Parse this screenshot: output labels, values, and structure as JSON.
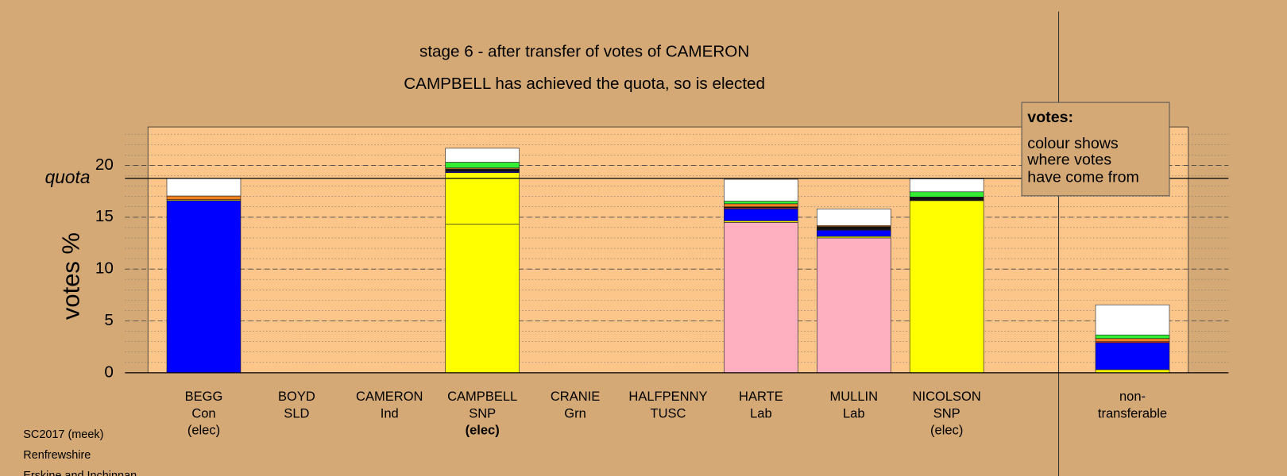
{
  "chart_data": {
    "type": "stacked_bar",
    "title": "stage 6 - after transfer of votes of CAMERON",
    "subtitle": "CAMPBELL has achieved the quota, so is elected",
    "y_label": "votes %",
    "quota_label": "quota",
    "quota": 18.75,
    "categories": [
      [
        "BEGG",
        "Con",
        "(elec)"
      ],
      [
        "BOYD",
        "SLD"
      ],
      [
        "CAMERON",
        "Ind"
      ],
      [
        "CAMPBELL",
        "SNP",
        "(elec)"
      ],
      [
        "CRANIE",
        "Grn"
      ],
      [
        "HALFPENNY",
        "TUSC"
      ],
      [
        "HARTE",
        "Lab"
      ],
      [
        "MULLIN",
        "Lab"
      ],
      [
        "NICOLSON",
        "SNP",
        "(elec)"
      ],
      [
        "non-",
        "transferable"
      ]
    ],
    "bold_category": 3,
    "series": [
      {
        "colors": [
          "#0000ff",
          "#f08020",
          "#ffffff",
          "#ffff00",
          "#33ee33",
          "#ee2222",
          "#ffb0c0",
          "#ffb0c0",
          "#ffff00",
          "#999999"
        ],
        "values": [
          16.6,
          0,
          0,
          14.35,
          0,
          0,
          14.5,
          13.0,
          16.6,
          0
        ]
      },
      {
        "color": "#ffff00",
        "values": [
          0.1,
          0,
          0,
          4.95,
          0,
          0,
          0.15,
          0.15,
          0,
          0.3
        ]
      },
      {
        "color": "#0000ff",
        "values": [
          0,
          0,
          0,
          0.1,
          0,
          0,
          1.15,
          0.6,
          0,
          2.6
        ]
      },
      {
        "color": "#ee2222",
        "values": [
          0,
          0,
          0,
          0,
          0,
          0,
          0.1,
          0,
          0,
          0.1
        ]
      },
      {
        "color": "#111111",
        "values": [
          0,
          0,
          0,
          0.25,
          0,
          0,
          0.1,
          0.35,
          0.35,
          0
        ]
      },
      {
        "color": "#f08020",
        "values": [
          0.35,
          0,
          0,
          0.1,
          0,
          0,
          0.3,
          0.1,
          0,
          0.3
        ]
      },
      {
        "color": "#33ee33",
        "values": [
          0,
          0,
          0,
          0.55,
          0,
          0,
          0.25,
          0,
          0.5,
          0.35
        ]
      },
      {
        "color": "#ffffff",
        "values": [
          1.7,
          0,
          0,
          1.35,
          0,
          0,
          2.1,
          1.6,
          1.25,
          2.9
        ]
      }
    ],
    "ylim": [
      0,
      23.7
    ],
    "yticks": [
      0,
      5,
      10,
      15,
      20
    ],
    "minor_step": 1,
    "grid": true,
    "legend": {
      "title": "votes:",
      "lines": [
        "colour shows",
        "where votes",
        "have come from"
      ]
    },
    "footer": [
      "SC2017 (meek)",
      "Renfrewshire",
      "Erskine and Inchinnan"
    ]
  }
}
